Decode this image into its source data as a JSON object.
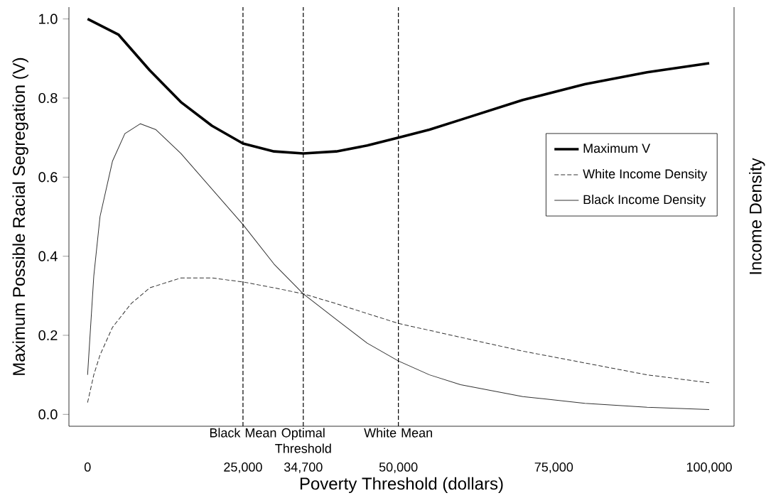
{
  "chart_data": {
    "type": "line",
    "xlabel": "Poverty Threshold (dollars)",
    "ylabel": "Maximum Possible Racial Segregation (V)",
    "y2label": "Income Density",
    "x": [
      0,
      5000,
      10000,
      15000,
      20000,
      25000,
      30000,
      34700,
      40000,
      45000,
      50000,
      55000,
      60000,
      70000,
      80000,
      90000,
      100000
    ],
    "series": [
      {
        "name": "Maximum V",
        "color": "#000000",
        "line_style": "solid",
        "values": [
          1.0,
          0.96,
          0.87,
          0.79,
          0.73,
          0.685,
          0.665,
          0.66,
          0.665,
          0.68,
          0.7,
          0.72,
          0.745,
          0.795,
          0.835,
          0.865,
          0.888
        ]
      },
      {
        "name": "White Income Density",
        "color": "#333333",
        "line_style": "dashed",
        "x": [
          0,
          1000,
          2000,
          4000,
          7000,
          10000,
          15000,
          20000,
          25000,
          30000,
          34700,
          40000,
          50000,
          60000,
          70000,
          80000,
          90000,
          100000
        ],
        "values": [
          0.03,
          0.1,
          0.15,
          0.22,
          0.28,
          0.32,
          0.345,
          0.345,
          0.335,
          0.32,
          0.305,
          0.28,
          0.23,
          0.195,
          0.16,
          0.13,
          0.1,
          0.08
        ]
      },
      {
        "name": "Black Income Density",
        "color": "#333333",
        "line_style": "solid",
        "x": [
          0,
          1000,
          2000,
          4000,
          6000,
          8500,
          11000,
          15000,
          20000,
          25000,
          30000,
          34700,
          40000,
          45000,
          50000,
          55000,
          60000,
          70000,
          80000,
          90000,
          100000
        ],
        "values": [
          0.1,
          0.35,
          0.5,
          0.64,
          0.71,
          0.735,
          0.72,
          0.66,
          0.57,
          0.48,
          0.38,
          0.305,
          0.24,
          0.18,
          0.135,
          0.1,
          0.075,
          0.045,
          0.028,
          0.018,
          0.012
        ]
      }
    ],
    "xlim": [
      -3000,
      104000
    ],
    "ylim": [
      -0.03,
      1.03
    ],
    "xticks": [
      {
        "value": 0,
        "label": "0"
      },
      {
        "value": 25000,
        "label": "25,000"
      },
      {
        "value": 34700,
        "label": "34,700"
      },
      {
        "value": 50000,
        "label": "50,000"
      },
      {
        "value": 75000,
        "label": "75,000"
      },
      {
        "value": 100000,
        "label": "100,000"
      }
    ],
    "yticks": [
      {
        "value": 0,
        "label": "0.0"
      },
      {
        "value": 0.2,
        "label": "0.2"
      },
      {
        "value": 0.4,
        "label": "0.4"
      },
      {
        "value": 0.6,
        "label": "0.6"
      },
      {
        "value": 0.8,
        "label": "0.8"
      },
      {
        "value": 1.0,
        "label": "1.0"
      }
    ],
    "ref_lines": [
      {
        "axis": "x",
        "value": 25000,
        "label": "Black Mean",
        "line_style": "dashed"
      },
      {
        "axis": "x",
        "value": 34700,
        "label": "Optimal Threshold",
        "line_style": "dashed"
      },
      {
        "axis": "x",
        "value": 50000,
        "label": "White Mean",
        "line_style": "dashed"
      }
    ],
    "grid": false,
    "legend": "right",
    "marker": "none"
  }
}
